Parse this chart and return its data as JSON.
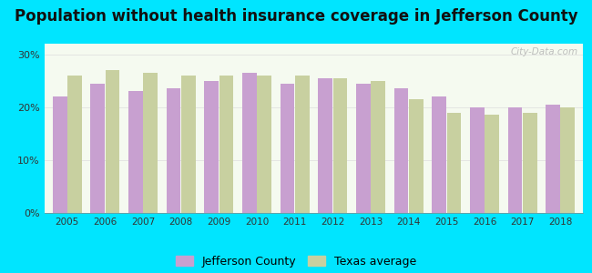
{
  "title": "Population without health insurance coverage in Jefferson County",
  "years": [
    2005,
    2006,
    2007,
    2008,
    2009,
    2010,
    2011,
    2012,
    2013,
    2014,
    2015,
    2016,
    2017,
    2018
  ],
  "jefferson": [
    22.0,
    24.5,
    23.0,
    23.5,
    25.0,
    26.5,
    24.5,
    25.5,
    24.5,
    23.5,
    22.0,
    20.0,
    20.0,
    20.5
  ],
  "texas": [
    26.0,
    27.0,
    26.5,
    26.0,
    26.0,
    26.0,
    26.0,
    25.5,
    25.0,
    21.5,
    19.0,
    18.5,
    19.0,
    20.0
  ],
  "jefferson_color": "#c8a0d0",
  "texas_color": "#c8d0a0",
  "background_outer": "#00e5ff",
  "background_inner": "#f5faf0",
  "title_fontsize": 12,
  "yticks": [
    0,
    10,
    20,
    30
  ],
  "ylim": [
    0,
    32
  ],
  "legend_jefferson": "Jefferson County",
  "legend_texas": "Texas average",
  "watermark": "City-Data.com"
}
